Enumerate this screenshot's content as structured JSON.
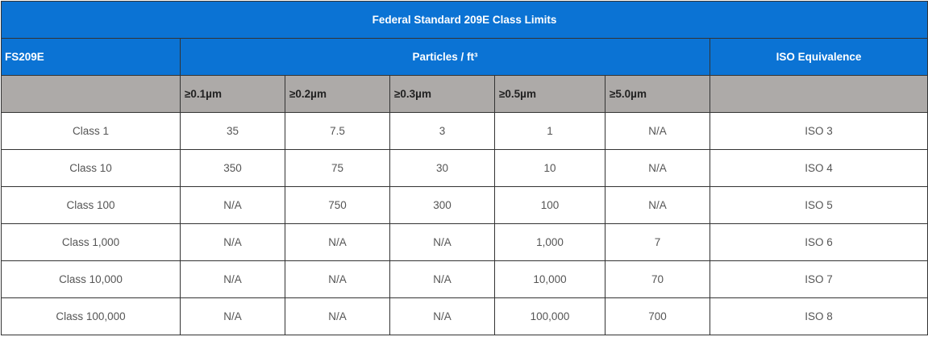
{
  "table": {
    "title": "Federal Standard 209E Class Limits",
    "header": {
      "fs209e": "FS209E",
      "particles": "Particles / ft³",
      "iso": "ISO Equivalence"
    },
    "sizes": [
      "≥0.1µm",
      "≥0.2µm",
      "≥0.3µm",
      "≥0.5µm",
      "≥5.0µm"
    ],
    "rows": [
      [
        "Class 1",
        "35",
        "7.5",
        "3",
        "1",
        "N/A",
        "ISO 3"
      ],
      [
        "Class 10",
        "350",
        "75",
        "30",
        "10",
        "N/A",
        "ISO 4"
      ],
      [
        "Class 100",
        "N/A",
        "750",
        "300",
        "100",
        "N/A",
        "ISO 5"
      ],
      [
        "Class 1,000",
        "N/A",
        "N/A",
        "N/A",
        "1,000",
        "7",
        "ISO 6"
      ],
      [
        "Class 10,000",
        "N/A",
        "N/A",
        "N/A",
        "10,000",
        "70",
        "ISO 7"
      ],
      [
        "Class 100,000",
        "N/A",
        "N/A",
        "N/A",
        "100,000",
        "700",
        "ISO 8"
      ]
    ]
  },
  "colors": {
    "header_blue": "#0b73d4",
    "subheader_gray": "#adaaa8"
  }
}
